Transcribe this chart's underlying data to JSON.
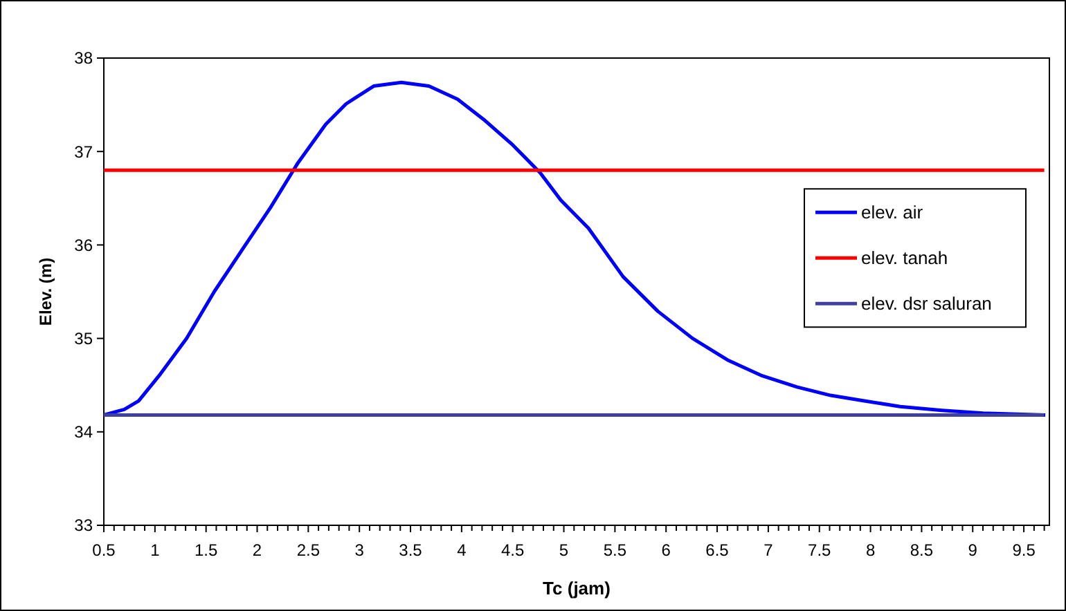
{
  "chart_data": {
    "type": "line",
    "xlabel": "Tc (jam)",
    "ylabel": "Elev. (m)",
    "xlim": [
      0.5,
      9.75
    ],
    "ylim": [
      33,
      38
    ],
    "yticks": [
      33,
      34,
      35,
      36,
      37,
      38
    ],
    "xticks": [
      0.5,
      {
        "value": 0.6,
        "label": null
      },
      {
        "value": 0.7,
        "label": null
      },
      {
        "value": 0.8,
        "label": null
      },
      {
        "value": 0.9,
        "label": null
      },
      1,
      {
        "value": 1.1,
        "label": null
      },
      {
        "value": 1.2,
        "label": null
      },
      {
        "value": 1.3,
        "label": null
      },
      {
        "value": 1.4,
        "label": null
      },
      1.5,
      {
        "value": 1.6,
        "label": null
      },
      {
        "value": 1.7,
        "label": null
      },
      {
        "value": 1.8,
        "label": null
      },
      {
        "value": 1.9,
        "label": null
      },
      2,
      {
        "value": 2.1,
        "label": null
      },
      {
        "value": 2.2,
        "label": null
      },
      {
        "value": 2.3,
        "label": null
      },
      {
        "value": 2.4,
        "label": null
      },
      2.5,
      {
        "value": 2.6,
        "label": null
      },
      {
        "value": 2.7,
        "label": null
      },
      {
        "value": 2.8,
        "label": null
      },
      {
        "value": 2.9,
        "label": null
      },
      3,
      {
        "value": 3.1,
        "label": null
      },
      {
        "value": 3.2,
        "label": null
      },
      {
        "value": 3.3,
        "label": null
      },
      {
        "value": 3.4,
        "label": null
      },
      3.5,
      {
        "value": 3.6,
        "label": null
      },
      {
        "value": 3.7,
        "label": null
      },
      {
        "value": 3.8,
        "label": null
      },
      {
        "value": 3.9,
        "label": null
      },
      4,
      {
        "value": 4.1,
        "label": null
      },
      {
        "value": 4.2,
        "label": null
      },
      {
        "value": 4.3,
        "label": null
      },
      {
        "value": 4.4,
        "label": null
      },
      4.5,
      {
        "value": 4.6,
        "label": null
      },
      {
        "value": 4.7,
        "label": null
      },
      {
        "value": 4.8,
        "label": null
      },
      {
        "value": 4.9,
        "label": null
      },
      5,
      {
        "value": 5.1,
        "label": null
      },
      {
        "value": 5.2,
        "label": null
      },
      {
        "value": 5.3,
        "label": null
      },
      {
        "value": 5.4,
        "label": null
      },
      5.5,
      {
        "value": 5.6,
        "label": null
      },
      {
        "value": 5.7,
        "label": null
      },
      {
        "value": 5.8,
        "label": null
      },
      {
        "value": 5.9,
        "label": null
      },
      6,
      {
        "value": 6.1,
        "label": null
      },
      {
        "value": 6.2,
        "label": null
      },
      {
        "value": 6.3,
        "label": null
      },
      {
        "value": 6.4,
        "label": null
      },
      6.5,
      {
        "value": 6.6,
        "label": null
      },
      {
        "value": 6.7,
        "label": null
      },
      {
        "value": 6.8,
        "label": null
      },
      {
        "value": 6.9,
        "label": null
      },
      7,
      {
        "value": 7.1,
        "label": null
      },
      {
        "value": 7.2,
        "label": null
      },
      {
        "value": 7.3,
        "label": null
      },
      {
        "value": 7.4,
        "label": null
      },
      7.5,
      {
        "value": 7.6,
        "label": null
      },
      {
        "value": 7.7,
        "label": null
      },
      {
        "value": 7.8,
        "label": null
      },
      {
        "value": 7.9,
        "label": null
      },
      8,
      {
        "value": 8.1,
        "label": null
      },
      {
        "value": 8.2,
        "label": null
      },
      {
        "value": 8.3,
        "label": null
      },
      {
        "value": 8.4,
        "label": null
      },
      8.5,
      {
        "value": 8.6,
        "label": null
      },
      {
        "value": 8.7,
        "label": null
      },
      {
        "value": 8.8,
        "label": null
      },
      {
        "value": 8.9,
        "label": null
      },
      9,
      {
        "value": 9.1,
        "label": null
      },
      {
        "value": 9.2,
        "label": null
      },
      {
        "value": 9.3,
        "label": null
      },
      {
        "value": 9.4,
        "label": null
      },
      9.5,
      {
        "value": 9.6,
        "label": null
      },
      {
        "value": 9.7,
        "label": null
      }
    ],
    "grid": false,
    "legend": "right",
    "marker": "none",
    "line_style": "solid",
    "series": [
      {
        "name": "elev. air",
        "color": "#0000ff",
        "x": [
          0.5,
          0.7,
          0.84,
          1.04,
          1.31,
          1.58,
          1.86,
          2.13,
          2.4,
          2.67,
          2.87,
          3.14,
          3.41,
          3.68,
          3.96,
          4.23,
          4.5,
          4.77,
          4.97,
          5.24,
          5.58,
          5.92,
          6.26,
          6.6,
          6.94,
          7.28,
          7.61,
          7.95,
          8.29,
          8.7,
          9.1,
          9.71
        ],
        "values": [
          34.18,
          34.24,
          34.33,
          34.6,
          35.0,
          35.5,
          35.96,
          36.4,
          36.88,
          37.29,
          37.51,
          37.7,
          37.74,
          37.7,
          37.56,
          37.33,
          37.07,
          36.77,
          36.48,
          36.18,
          35.66,
          35.29,
          35.0,
          34.77,
          34.6,
          34.48,
          34.39,
          34.33,
          34.27,
          34.23,
          34.2,
          34.18
        ]
      },
      {
        "name": "elev. tanah",
        "color": "#ff0000",
        "x": [
          0.5,
          9.7
        ],
        "values": [
          36.8,
          36.8
        ]
      },
      {
        "name": "elev. dsr saluran",
        "color": "#4040a0",
        "x": [
          0.5,
          9.7
        ],
        "values": [
          34.18,
          34.18
        ]
      }
    ]
  }
}
